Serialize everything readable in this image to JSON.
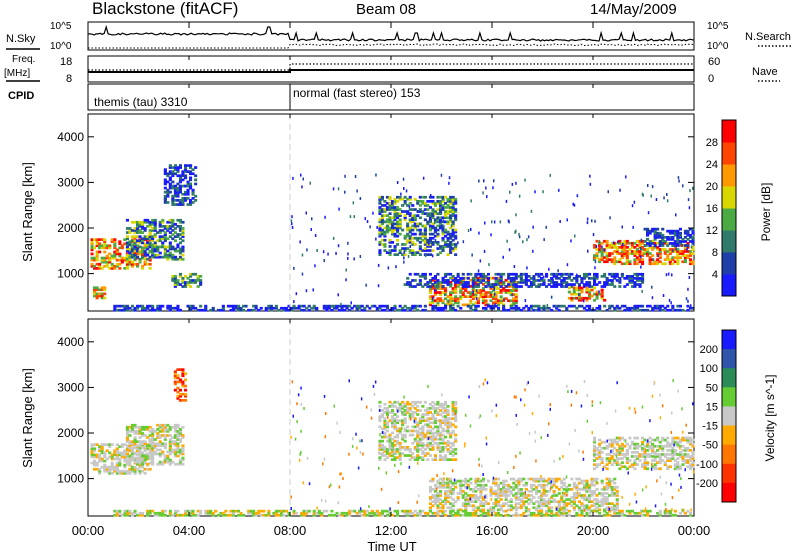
{
  "header": {
    "station": "Blackstone (fitACF)",
    "beam": "Beam 08",
    "date": "14/May/2009"
  },
  "left_labels": {
    "nsky": "N.Sky",
    "freq": "Freq.",
    "freq_unit": "[MHz]",
    "cpid": "CPID"
  },
  "right_labels": {
    "nsearch": "N.Search",
    "nave": "Nave"
  },
  "noise_axis": {
    "ticks_left": [
      "10^5",
      "10^0"
    ],
    "ticks_right": [
      "10^5",
      "10^0"
    ]
  },
  "freq_axis": {
    "ticks_left": [
      "18",
      "8"
    ],
    "ticks_right": [
      "60",
      "0"
    ]
  },
  "cpid": {
    "segments": [
      {
        "label": "themis (tau) 3310",
        "start_hour": 0,
        "end_hour": 8
      },
      {
        "label": "normal (fast stereo) 153",
        "start_hour": 8,
        "end_hour": 24
      }
    ]
  },
  "time_axis": {
    "label": "Time UT",
    "ticks": [
      "00:00",
      "04:00",
      "08:00",
      "12:00",
      "16:00",
      "20:00",
      "00:00"
    ]
  },
  "chart_data": [
    {
      "type": "heatmap",
      "title": "Power",
      "ylabel": "Slant Range [km]",
      "xlabel": "",
      "xlim": [
        0,
        24
      ],
      "ylim": [
        180,
        4500
      ],
      "yticks": [
        "1000",
        "2000",
        "3000",
        "4000"
      ],
      "colorbar": {
        "label": "Power [dB]",
        "ticks": [
          "4",
          "8",
          "12",
          "16",
          "20",
          "24",
          "28"
        ],
        "colors": [
          "#1a1aff",
          "#1e3fa8",
          "#2f7a6a",
          "#4caa44",
          "#d8d800",
          "#ff9900",
          "#ff4400",
          "#ff0000"
        ]
      },
      "regions": [
        {
          "t0": 0.1,
          "t1": 2.5,
          "r0": 1100,
          "r1": 1750,
          "level": "high"
        },
        {
          "t0": 0.2,
          "t1": 0.7,
          "r0": 450,
          "r1": 700,
          "level": "high"
        },
        {
          "t0": 1.5,
          "t1": 3.8,
          "r0": 1300,
          "r1": 2200,
          "level": "mid"
        },
        {
          "t0": 3.0,
          "t1": 4.3,
          "r0": 2500,
          "r1": 3400,
          "level": "low"
        },
        {
          "t0": 3.3,
          "t1": 4.4,
          "r0": 700,
          "r1": 1000,
          "level": "mid"
        },
        {
          "t0": 11.5,
          "t1": 14.5,
          "r0": 1400,
          "r1": 2700,
          "level": "mid"
        },
        {
          "t0": 13.5,
          "t1": 17.0,
          "r0": 300,
          "r1": 900,
          "level": "high"
        },
        {
          "t0": 12.5,
          "t1": 22.0,
          "r0": 700,
          "r1": 1000,
          "level": "low"
        },
        {
          "t0": 19.0,
          "t1": 20.5,
          "r0": 400,
          "r1": 700,
          "level": "high"
        },
        {
          "t0": 20.0,
          "t1": 24.0,
          "r0": 1200,
          "r1": 1700,
          "level": "high"
        },
        {
          "t0": 22.0,
          "t1": 24.0,
          "r0": 1600,
          "r1": 2000,
          "level": "low"
        },
        {
          "t0": 1.0,
          "t1": 24.0,
          "r0": 180,
          "r1": 300,
          "level": "low"
        }
      ]
    },
    {
      "type": "heatmap",
      "title": "Velocity",
      "ylabel": "Slant Range [km]",
      "xlabel": "Time UT",
      "xlim": [
        0,
        24
      ],
      "ylim": [
        180,
        4500
      ],
      "yticks": [
        "1000",
        "2000",
        "3000",
        "4000"
      ],
      "colorbar": {
        "label": "Velocity [m s^-1]",
        "ticks": [
          "200",
          "100",
          "50",
          "15",
          "-15",
          "-50",
          "-100",
          "-200"
        ],
        "colors": [
          "#1a1aff",
          "#2f55aa",
          "#2c8c58",
          "#66cc33",
          "#c8c8c8",
          "#ffaa00",
          "#ff7700",
          "#ff3300",
          "#ff0000"
        ]
      },
      "regions": [
        {
          "t0": 0.1,
          "t1": 2.5,
          "r0": 1100,
          "r1": 1750,
          "level": "gray"
        },
        {
          "t0": 1.5,
          "t1": 3.8,
          "r0": 1300,
          "r1": 2200,
          "level": "gray"
        },
        {
          "t0": 3.4,
          "t1": 3.9,
          "r0": 2700,
          "r1": 3400,
          "level": "neg"
        },
        {
          "t0": 11.5,
          "t1": 14.5,
          "r0": 1400,
          "r1": 2700,
          "level": "gray"
        },
        {
          "t0": 13.5,
          "t1": 21.0,
          "r0": 300,
          "r1": 1000,
          "level": "gray"
        },
        {
          "t0": 20.0,
          "t1": 24.0,
          "r0": 1200,
          "r1": 1900,
          "level": "gray"
        },
        {
          "t0": 1.0,
          "t1": 24.0,
          "r0": 180,
          "r1": 300,
          "level": "pos"
        }
      ]
    }
  ]
}
